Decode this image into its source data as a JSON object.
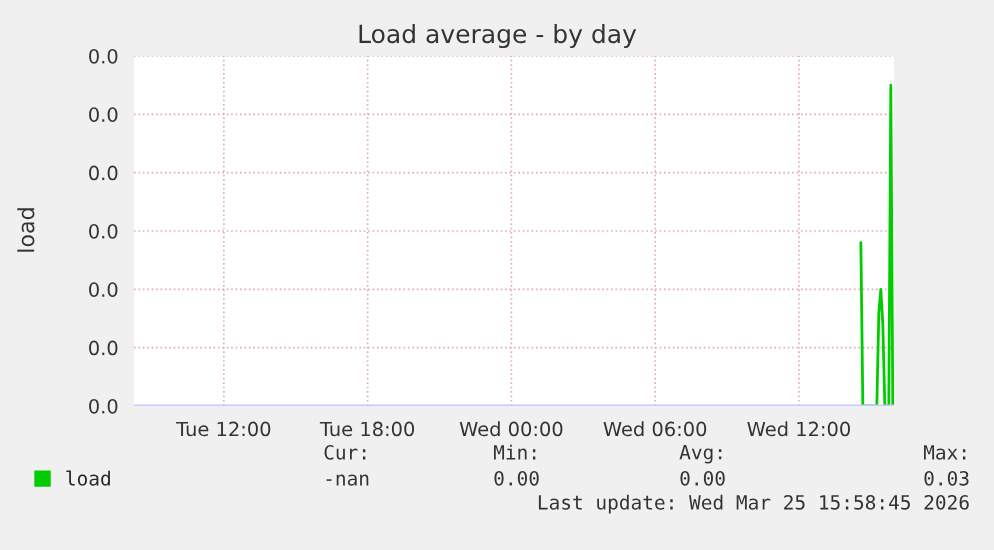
{
  "chart_data": {
    "type": "line",
    "title": "Load average - by day",
    "ylabel": "load",
    "x": [
      "2026-03-25T14:35",
      "2026-03-25T14:40",
      "2026-03-25T15:15",
      "2026-03-25T15:20",
      "2026-03-25T15:25",
      "2026-03-25T15:30",
      "2026-03-25T15:35",
      "2026-03-25T15:45",
      "2026-03-25T15:50",
      "2026-03-25T15:55"
    ],
    "series": [
      {
        "name": "load",
        "color": "#00cc00",
        "values": [
          0.014,
          0,
          0,
          0.008,
          0.01,
          0.007,
          0,
          0,
          0.0275,
          0
        ]
      }
    ],
    "xlim": [
      "2026-03-24T08:15",
      "2026-03-25T15:58"
    ],
    "xticks": [
      {
        "value": "2026-03-24T12:00",
        "label": "Tue 12:00"
      },
      {
        "value": "2026-03-24T18:00",
        "label": "Tue 18:00"
      },
      {
        "value": "2026-03-25T00:00",
        "label": "Wed 00:00"
      },
      {
        "value": "2026-03-25T06:00",
        "label": "Wed 06:00"
      },
      {
        "value": "2026-03-25T12:00",
        "label": "Wed 12:00"
      }
    ],
    "ylim": [
      0,
      0.03
    ],
    "yticks": [
      {
        "value": 0,
        "label": "0.0"
      },
      {
        "value": 0.005,
        "label": "0.0"
      },
      {
        "value": 0.01,
        "label": "0.0"
      },
      {
        "value": 0.015,
        "label": "0.0"
      },
      {
        "value": 0.02,
        "label": "0.0"
      },
      {
        "value": 0.025,
        "label": "0.0"
      },
      {
        "value": 0.03,
        "label": "0.0"
      }
    ],
    "grid": true,
    "legend": "bottom",
    "marker": "none",
    "line_style": "solid",
    "annotations": [
      "Cur:",
      "Min:",
      "Avg:",
      "Max:",
      "-nan",
      "0.00",
      "0.00",
      "0.03",
      "Last update: Wed Mar 25 15:58:45 2026"
    ]
  }
}
